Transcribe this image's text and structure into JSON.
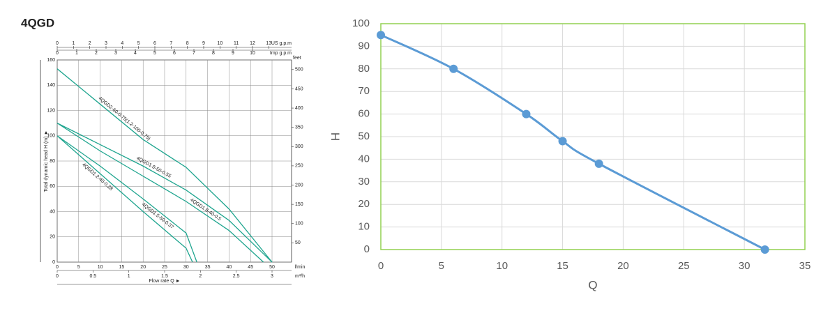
{
  "chart_data": [
    {
      "type": "line",
      "title": "4QGD",
      "x_label": "Flow rate Q ►",
      "y_label": "Total dynamic head H (m) ►",
      "xlim": [
        0,
        50
      ],
      "xticks": [
        0,
        5,
        10,
        15,
        20,
        25,
        30,
        35,
        40,
        45,
        50
      ],
      "x_unit": "l/min",
      "ylim": [
        0,
        160
      ],
      "yticks": [
        0,
        20,
        40,
        60,
        80,
        100,
        120,
        140,
        160
      ],
      "y2lim": [
        0,
        525
      ],
      "y2ticks": [
        50,
        100,
        150,
        200,
        250,
        300,
        350,
        400,
        450,
        500
      ],
      "y2_unit": "feet",
      "m3h_axis": {
        "unit": "m³/h",
        "lim": [
          0,
          3
        ],
        "ticks": [
          0,
          0.5,
          1,
          1.5,
          2,
          2.5,
          3
        ]
      },
      "us_gpm_axis": {
        "unit": "US g.p.m",
        "lim": [
          0,
          13.2
        ],
        "ticks": [
          0,
          1,
          2,
          3,
          4,
          5,
          6,
          7,
          8,
          9,
          10,
          11,
          12,
          13
        ]
      },
      "imp_gpm_axis": {
        "unit": "Imp g.p.m",
        "lim": [
          0,
          11
        ],
        "ticks": [
          0,
          1,
          2,
          3,
          4,
          5,
          6,
          7,
          8,
          9,
          10
        ]
      },
      "grid": true,
      "series": [
        {
          "name": "4QGD2-60-0.75(1.2-100-0.75)",
          "color": "#1fa58f",
          "x": [
            0,
            10,
            20,
            30,
            40,
            50
          ],
          "values": [
            153,
            125,
            97,
            75,
            42,
            0
          ]
        },
        {
          "name": "4QGD1.8-50-0.55",
          "color": "#1fa58f",
          "x": [
            0,
            10,
            20,
            30,
            40,
            50
          ],
          "values": [
            110,
            93,
            76,
            57,
            33,
            0
          ]
        },
        {
          "name": "4QGD1.8-40-0.5",
          "color": "#1fa58f",
          "x": [
            0,
            10,
            20,
            30,
            40,
            48
          ],
          "values": [
            110,
            88,
            68,
            48,
            25,
            0
          ]
        },
        {
          "name": "4QGD1.5-50-0.37",
          "color": "#1fa58f",
          "x": [
            0,
            10,
            20,
            30,
            32.5
          ],
          "values": [
            100,
            76,
            50,
            23,
            0
          ]
        },
        {
          "name": "4QGD1.2-40-0.28",
          "color": "#1fa58f",
          "x": [
            0,
            10,
            20,
            30,
            31.5
          ],
          "values": [
            100,
            70,
            40,
            11,
            0
          ]
        }
      ]
    },
    {
      "type": "line",
      "x_label": "Q",
      "y_label": "H",
      "xlim": [
        0,
        35
      ],
      "xticks": [
        0,
        5,
        10,
        15,
        20,
        25,
        30,
        35
      ],
      "ylim": [
        0,
        100
      ],
      "yticks": [
        0,
        10,
        20,
        30,
        40,
        50,
        60,
        70,
        80,
        90,
        100
      ],
      "grid": true,
      "frame_color": "#92d050",
      "x": [
        0,
        6,
        12,
        15,
        18,
        31.7
      ],
      "series": [
        {
          "color": "#5b9bd5",
          "values": [
            95,
            80,
            60,
            48,
            38,
            0
          ]
        }
      ]
    }
  ]
}
